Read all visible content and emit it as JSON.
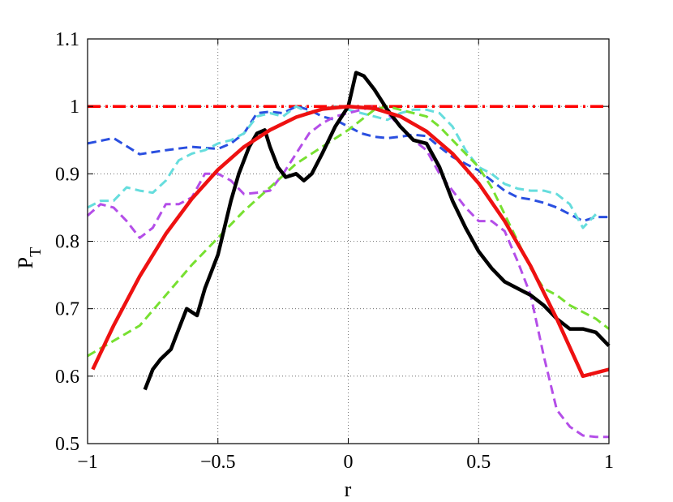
{
  "chart_data": {
    "type": "line",
    "title": "",
    "xlabel": "r",
    "ylabel_main": "P",
    "ylabel_sub": "T",
    "xlim": [
      -1,
      1
    ],
    "ylim": [
      0.5,
      1.1
    ],
    "xticks": [
      -1,
      -0.5,
      0,
      0.5,
      1
    ],
    "xtick_labels": [
      "−1",
      "−0.5",
      "0",
      "0.5",
      "1"
    ],
    "yticks": [
      0.5,
      0.6,
      0.7,
      0.8,
      0.9,
      1.0,
      1.1
    ],
    "ytick_labels": [
      "0.5",
      "0.6",
      "0.7",
      "0.8",
      "0.9",
      "1",
      "1.1"
    ],
    "grid": true,
    "series": [
      {
        "color": "#ff0000",
        "style": "dashdot",
        "width": 3.5,
        "x": [
          -1,
          1
        ],
        "y": [
          1.0,
          1.0
        ]
      },
      {
        "color": "#2a4fe0",
        "style": "dashed",
        "width": 3,
        "x": [
          -1,
          -0.9,
          -0.8,
          -0.7,
          -0.6,
          -0.5,
          -0.45,
          -0.4,
          -0.35,
          -0.3,
          -0.25,
          -0.2,
          -0.15,
          -0.1,
          -0.05,
          0,
          0.05,
          0.1,
          0.15,
          0.2,
          0.25,
          0.3,
          0.35,
          0.4,
          0.45,
          0.5,
          0.55,
          0.6,
          0.65,
          0.7,
          0.75,
          0.8,
          0.85,
          0.9,
          0.95,
          1.0
        ],
        "y": [
          0.945,
          0.953,
          0.929,
          0.935,
          0.94,
          0.937,
          0.945,
          0.96,
          0.99,
          0.992,
          0.99,
          1.0,
          0.995,
          0.985,
          0.98,
          0.97,
          0.96,
          0.955,
          0.953,
          0.955,
          0.958,
          0.956,
          0.94,
          0.925,
          0.915,
          0.905,
          0.89,
          0.875,
          0.865,
          0.862,
          0.857,
          0.85,
          0.84,
          0.83,
          0.836,
          0.836
        ]
      },
      {
        "color": "#66dddd",
        "style": "dashed",
        "width": 3,
        "x": [
          -1,
          -0.95,
          -0.9,
          -0.85,
          -0.8,
          -0.75,
          -0.7,
          -0.65,
          -0.6,
          -0.55,
          -0.5,
          -0.45,
          -0.4,
          -0.35,
          -0.3,
          -0.25,
          -0.2,
          -0.15,
          -0.1,
          -0.05,
          0,
          0.05,
          0.1,
          0.15,
          0.2,
          0.25,
          0.3,
          0.35,
          0.4,
          0.45,
          0.5,
          0.55,
          0.6,
          0.65,
          0.7,
          0.75,
          0.8,
          0.85,
          0.9,
          0.95
        ],
        "y": [
          0.85,
          0.86,
          0.86,
          0.88,
          0.875,
          0.872,
          0.89,
          0.92,
          0.93,
          0.935,
          0.945,
          0.95,
          0.96,
          0.985,
          0.99,
          0.985,
          1.0,
          0.99,
          0.995,
          1.0,
          0.995,
          0.99,
          0.985,
          0.98,
          0.99,
          0.995,
          0.995,
          0.99,
          0.97,
          0.935,
          0.91,
          0.9,
          0.885,
          0.878,
          0.875,
          0.875,
          0.87,
          0.855,
          0.82,
          0.84
        ]
      },
      {
        "color": "#b44ee8",
        "style": "dashed",
        "width": 3,
        "x": [
          -1,
          -0.95,
          -0.9,
          -0.85,
          -0.8,
          -0.75,
          -0.7,
          -0.65,
          -0.6,
          -0.55,
          -0.5,
          -0.45,
          -0.4,
          -0.35,
          -0.3,
          -0.25,
          -0.2,
          -0.15,
          -0.1,
          -0.05,
          0,
          0.05,
          0.1,
          0.15,
          0.2,
          0.25,
          0.3,
          0.35,
          0.4,
          0.45,
          0.5,
          0.55,
          0.6,
          0.65,
          0.7,
          0.75,
          0.8,
          0.85,
          0.9,
          0.95,
          1.0
        ],
        "y": [
          0.838,
          0.855,
          0.85,
          0.83,
          0.805,
          0.82,
          0.855,
          0.855,
          0.865,
          0.9,
          0.9,
          0.89,
          0.87,
          0.872,
          0.875,
          0.9,
          0.93,
          0.96,
          0.975,
          0.985,
          0.99,
          0.995,
          1.0,
          0.99,
          0.97,
          0.95,
          0.935,
          0.9,
          0.875,
          0.85,
          0.83,
          0.83,
          0.815,
          0.77,
          0.72,
          0.63,
          0.55,
          0.525,
          0.512,
          0.51,
          0.51
        ]
      },
      {
        "color": "#77e030",
        "style": "dashed",
        "width": 3,
        "x": [
          -1,
          -0.8,
          -0.6,
          -0.4,
          -0.2,
          0,
          0.05,
          0.1,
          0.15,
          0.2,
          0.25,
          0.3,
          0.35,
          0.4,
          0.45,
          0.5,
          0.55,
          0.6,
          0.65,
          0.7,
          0.75,
          0.8,
          0.85,
          0.9,
          0.95,
          1.0
        ],
        "y": [
          0.63,
          0.675,
          0.765,
          0.845,
          0.915,
          0.965,
          0.98,
          0.995,
          1.0,
          0.995,
          0.99,
          0.985,
          0.97,
          0.95,
          0.93,
          0.91,
          0.88,
          0.84,
          0.8,
          0.76,
          0.73,
          0.72,
          0.705,
          0.695,
          0.685,
          0.67
        ]
      },
      {
        "color": "#000000",
        "style": "solid",
        "width": 4.5,
        "x": [
          -0.78,
          -0.75,
          -0.72,
          -0.68,
          -0.65,
          -0.62,
          -0.58,
          -0.55,
          -0.5,
          -0.45,
          -0.42,
          -0.38,
          -0.35,
          -0.32,
          -0.3,
          -0.27,
          -0.24,
          -0.2,
          -0.17,
          -0.14,
          -0.1,
          -0.05,
          0,
          0.03,
          0.06,
          0.1,
          0.15,
          0.2,
          0.25,
          0.3,
          0.35,
          0.4,
          0.45,
          0.5,
          0.55,
          0.6,
          0.65,
          0.7,
          0.75,
          0.8,
          0.85,
          0.9,
          0.95,
          1.0
        ],
        "y": [
          0.58,
          0.61,
          0.625,
          0.64,
          0.67,
          0.7,
          0.69,
          0.73,
          0.78,
          0.86,
          0.9,
          0.94,
          0.96,
          0.965,
          0.94,
          0.91,
          0.895,
          0.9,
          0.89,
          0.9,
          0.93,
          0.97,
          1.0,
          1.05,
          1.045,
          1.025,
          0.995,
          0.97,
          0.95,
          0.945,
          0.91,
          0.86,
          0.82,
          0.785,
          0.76,
          0.74,
          0.73,
          0.72,
          0.705,
          0.685,
          0.67,
          0.67,
          0.665,
          0.645
        ]
      },
      {
        "color": "#ee1111",
        "style": "solid",
        "width": 4.5,
        "x": [
          -0.98,
          -0.9,
          -0.8,
          -0.7,
          -0.6,
          -0.5,
          -0.4,
          -0.3,
          -0.2,
          -0.1,
          0,
          0.1,
          0.2,
          0.3,
          0.4,
          0.5,
          0.6,
          0.7,
          0.8,
          0.9,
          1.0
        ],
        "y": [
          0.61,
          0.675,
          0.748,
          0.811,
          0.863,
          0.906,
          0.94,
          0.965,
          0.984,
          0.996,
          1.0,
          0.997,
          0.985,
          0.963,
          0.93,
          0.886,
          0.83,
          0.763,
          0.685,
          0.6,
          0.61
        ]
      }
    ]
  }
}
